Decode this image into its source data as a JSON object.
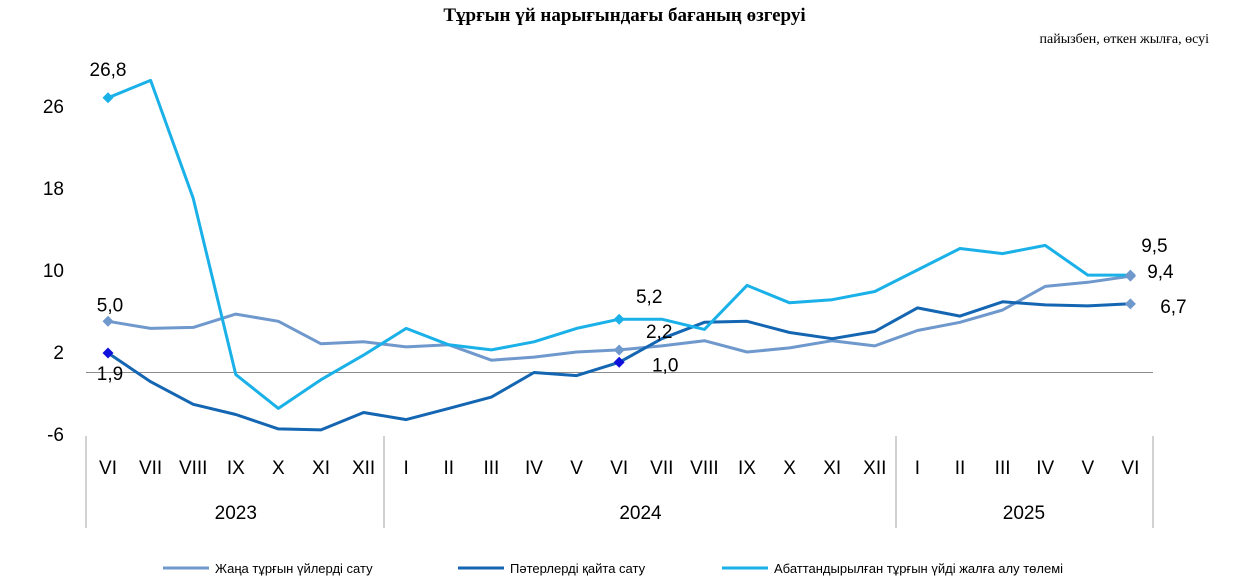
{
  "chart_data": {
    "type": "line",
    "title": "Тұрғын үй нарығындағы бағаның өзгеруі",
    "units": "пайызбен, өткен жылға, өсуі",
    "ylim": [
      -6,
      34
    ],
    "yticks": [
      -6,
      2,
      10,
      18,
      26
    ],
    "x": [
      "VI",
      "VII",
      "VIII",
      "IX",
      "X",
      "XI",
      "XII",
      "I",
      "II",
      "III",
      "IV",
      "V",
      "VI",
      "VII",
      "VIII",
      "IX",
      "X",
      "XI",
      "XII",
      "I",
      "II",
      "III",
      "IV",
      "V",
      "VI"
    ],
    "years": [
      {
        "label": "2023",
        "start": 0,
        "end": 6
      },
      {
        "label": "2024",
        "start": 7,
        "end": 18
      },
      {
        "label": "2025",
        "start": 19,
        "end": 24
      }
    ],
    "legend_position": "bottom",
    "series": [
      {
        "name": "Жаңа тұрғын үйлерді сату",
        "color": "#6f98cc",
        "values": [
          5.0,
          4.3,
          4.4,
          5.7,
          5.0,
          2.8,
          3.0,
          2.5,
          2.7,
          1.2,
          1.5,
          2.0,
          2.2,
          2.6,
          3.1,
          2.0,
          2.4,
          3.1,
          2.6,
          4.1,
          4.9,
          6.1,
          8.4,
          8.8,
          9.4
        ]
      },
      {
        "name": "Пәтерлерді қайта сату",
        "color": "#1466b2",
        "values": [
          1.9,
          -0.9,
          -3.1,
          -4.1,
          -5.5,
          -5.6,
          -3.9,
          -4.6,
          -3.5,
          -2.4,
          0.0,
          -0.3,
          1.0,
          3.3,
          4.9,
          5.0,
          3.9,
          3.3,
          4.0,
          6.3,
          5.5,
          6.9,
          6.6,
          6.5,
          6.7
        ]
      },
      {
        "name": "Абаттандырылған тұрғын үйді жалға алу төлемі",
        "color": "#1ab0e8",
        "values": [
          26.8,
          28.5,
          17.0,
          -0.2,
          -3.5,
          -0.7,
          1.7,
          4.3,
          2.7,
          2.2,
          3.0,
          4.3,
          5.2,
          5.2,
          4.2,
          8.5,
          6.8,
          7.1,
          7.9,
          10.0,
          12.1,
          11.6,
          12.4,
          9.5,
          9.5
        ]
      }
    ],
    "annotations": [
      {
        "text": "26,8",
        "series": 2,
        "index": 0
      },
      {
        "text": "5,0",
        "series": 0,
        "index": 0
      },
      {
        "text": "1,9",
        "series": 1,
        "index": 0
      },
      {
        "text": "5,2",
        "series": 2,
        "index": 12
      },
      {
        "text": "2,2",
        "series": 0,
        "index": 12
      },
      {
        "text": "1,0",
        "series": 1,
        "index": 12
      },
      {
        "text": "9,5",
        "series": 2,
        "index": 24
      },
      {
        "text": "9,4",
        "series": 0,
        "index": 24
      },
      {
        "text": "6,7",
        "series": 1,
        "index": 24
      }
    ],
    "markers": [
      {
        "series": 2,
        "index": 0,
        "color": "#1ab0e8"
      },
      {
        "series": 0,
        "index": 0,
        "color": "#6f98cc"
      },
      {
        "series": 1,
        "index": 0,
        "color": "#1010dd"
      },
      {
        "series": 2,
        "index": 12,
        "color": "#1ab0e8"
      },
      {
        "series": 0,
        "index": 12,
        "color": "#6f98cc"
      },
      {
        "series": 1,
        "index": 12,
        "color": "#1010dd"
      },
      {
        "series": 2,
        "index": 24,
        "color": "#6f98cc"
      },
      {
        "series": 0,
        "index": 24,
        "color": "#6f98cc"
      },
      {
        "series": 1,
        "index": 24,
        "color": "#6f98cc"
      }
    ]
  }
}
